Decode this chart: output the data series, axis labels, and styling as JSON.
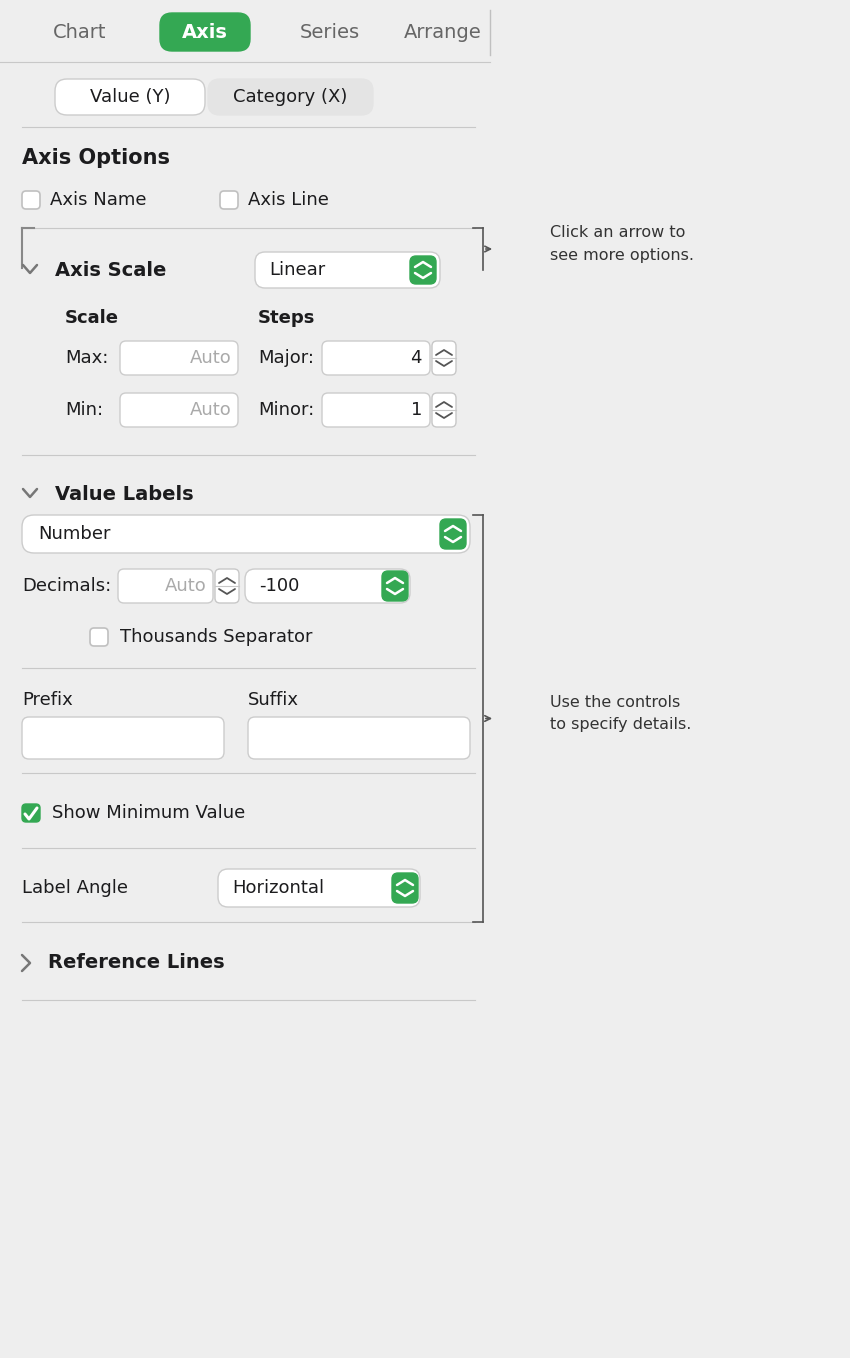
{
  "bg_color": "#eeeeee",
  "white": "#ffffff",
  "green": "#34a853",
  "dark_text": "#1c1c1e",
  "light_gray_text": "#aaaaaa",
  "separator_color": "#c8c8c8",
  "tabs": [
    "Chart",
    "Axis",
    "Series",
    "Arrange"
  ],
  "active_tab": "Axis",
  "section1_title": "Axis Options",
  "checkbox1_label": "Axis Name",
  "checkbox2_label": "Axis Line",
  "section2_title": "Axis Scale",
  "scale_dropdown": "Linear",
  "scale_label": "Scale",
  "steps_label": "Steps",
  "max_label": "Max:",
  "max_value": "Auto",
  "min_label": "Min:",
  "min_value": "Auto",
  "major_label": "Major:",
  "major_value": "4",
  "minor_label": "Minor:",
  "minor_value": "1",
  "section3_title": "Value Labels",
  "number_dropdown": "Number",
  "decimals_label": "Decimals:",
  "decimals_value": "Auto",
  "negative_dropdown": "-100",
  "thousands_label": "Thousands Separator",
  "prefix_label": "Prefix",
  "suffix_label": "Suffix",
  "show_min_label": "Show Minimum Value",
  "label_angle_label": "Label Angle",
  "label_angle_dropdown": "Horizontal",
  "section4_title": "Reference Lines",
  "annotation1": "Click an arrow to\nsee more options.",
  "annotation2": "Use the controls\nto specify details.",
  "fig_width": 8.5,
  "fig_height": 13.58,
  "dpi": 100
}
